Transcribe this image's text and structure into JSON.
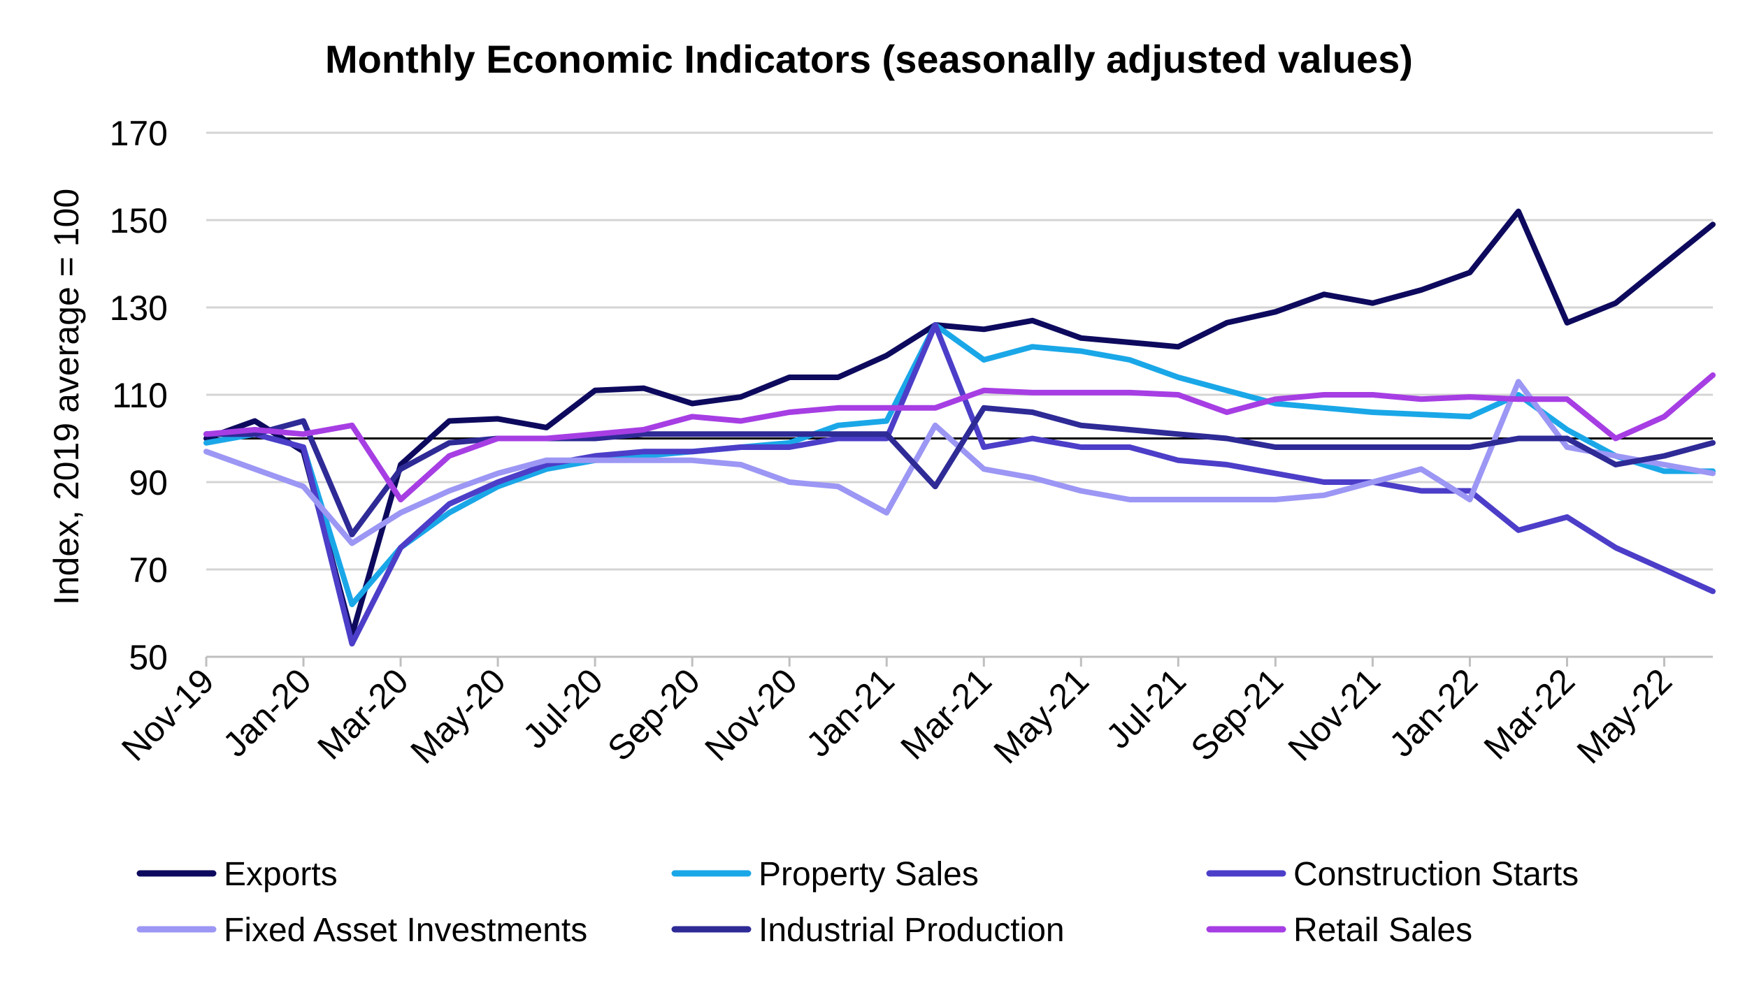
{
  "chart_data": {
    "type": "line",
    "title": "Monthly Economic Indicators (seasonally adjusted values)",
    "xlabel": "",
    "ylabel": "Index, 2019 average = 100",
    "ylim": [
      50,
      170
    ],
    "yticks": [
      50,
      70,
      90,
      110,
      130,
      150,
      170
    ],
    "reference_line": 100,
    "grid": true,
    "legend_position": "bottom",
    "categories": [
      "Nov-19",
      "Dec-19",
      "Jan-20",
      "Feb-20",
      "Mar-20",
      "Apr-20",
      "May-20",
      "Jun-20",
      "Jul-20",
      "Aug-20",
      "Sep-20",
      "Oct-20",
      "Nov-20",
      "Dec-20",
      "Jan-21",
      "Feb-21",
      "Mar-21",
      "Apr-21",
      "May-21",
      "Jun-21",
      "Jul-21",
      "Aug-21",
      "Sep-21",
      "Oct-21",
      "Nov-21",
      "Dec-21",
      "Jan-22",
      "Feb-22",
      "Mar-22",
      "Apr-22",
      "May-22",
      "Jun-22"
    ],
    "x_tick_labels": [
      "Nov-19",
      "Jan-20",
      "Mar-20",
      "May-20",
      "Jul-20",
      "Sep-20",
      "Nov-20",
      "Jan-21",
      "Mar-21",
      "May-21",
      "Jul-21",
      "Sep-21",
      "Nov-21",
      "Jan-22",
      "Mar-22",
      "May-22"
    ],
    "series": [
      {
        "name": "Exports",
        "color": "#0d0a5e",
        "values": [
          100,
          104,
          97,
          55,
          94,
          104,
          104.5,
          102.5,
          111,
          111.5,
          108,
          109.5,
          114,
          114,
          119,
          126,
          125,
          127,
          123,
          122,
          121,
          126.5,
          129,
          133,
          131,
          134,
          138,
          152,
          126.5,
          131,
          140,
          149
        ]
      },
      {
        "name": "Property Sales",
        "color": "#1aa7e8",
        "values": [
          99,
          101,
          98,
          62,
          75,
          83,
          89,
          93,
          95,
          96,
          97,
          98,
          99,
          103,
          104,
          126,
          118,
          121,
          120,
          118,
          114,
          111,
          108,
          107,
          106,
          105.5,
          105,
          110,
          102,
          96,
          92.5,
          92.5
        ]
      },
      {
        "name": "Construction Starts",
        "color": "#4c3ec8",
        "values": [
          101,
          101,
          98,
          53,
          75,
          85,
          90,
          94,
          96,
          97,
          97,
          98,
          98,
          100,
          100,
          126,
          98,
          100,
          98,
          98,
          95,
          94,
          92,
          90,
          90,
          88,
          88,
          79,
          82,
          75,
          70,
          65
        ]
      },
      {
        "name": "Fixed Asset Investments",
        "color": "#9c97f4",
        "values": [
          97,
          93,
          89,
          76,
          83,
          88,
          92,
          95,
          95,
          95,
          95,
          94,
          90,
          89,
          83,
          103,
          93,
          91,
          88,
          86,
          86,
          86,
          86,
          87,
          90,
          93,
          86,
          113,
          98,
          96,
          94,
          92
        ]
      },
      {
        "name": "Industrial Production",
        "color": "#2e2a96",
        "values": [
          101,
          101,
          104,
          78,
          93,
          99,
          100,
          100,
          100,
          101,
          101,
          101,
          101,
          101,
          101,
          89,
          107,
          106,
          103,
          102,
          101,
          100,
          98,
          98,
          98,
          98,
          98,
          100,
          100,
          94,
          96,
          99
        ]
      },
      {
        "name": "Retail Sales",
        "color": "#a63ee4",
        "values": [
          101,
          102,
          101,
          103,
          86,
          96,
          100,
          100,
          101,
          102,
          105,
          104,
          106,
          107,
          107,
          107,
          111,
          110.5,
          110.5,
          110.5,
          110,
          106,
          109,
          110,
          110,
          109,
          109.5,
          109,
          109,
          100,
          105,
          114.5
        ]
      }
    ]
  }
}
